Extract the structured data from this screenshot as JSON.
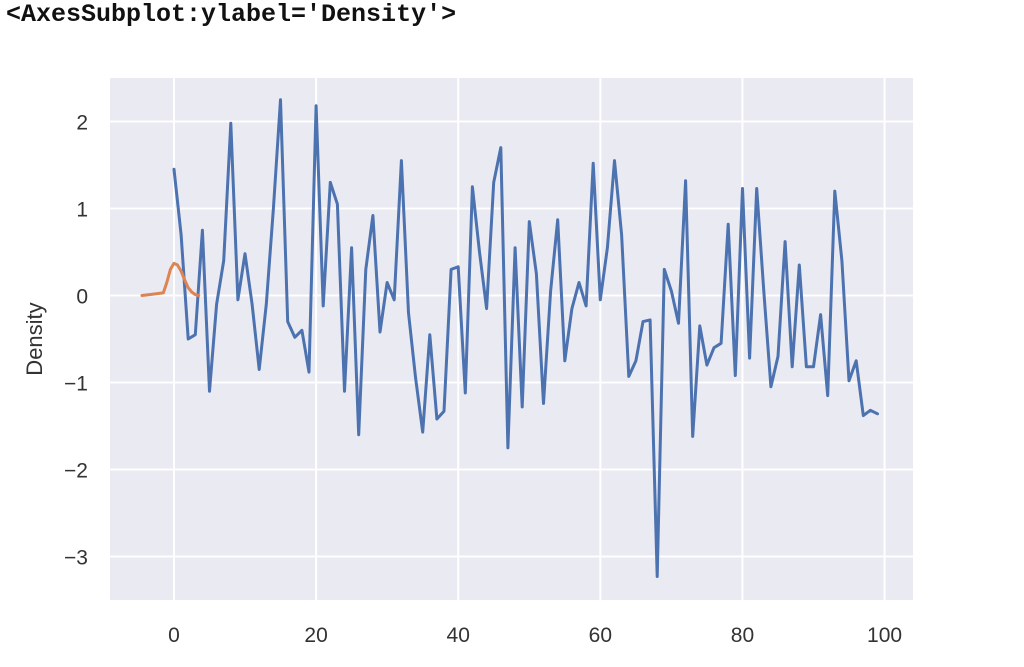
{
  "output_text": "<AxesSubplot:ylabel='Density'>",
  "chart_data": {
    "type": "line",
    "ylabel": "Density",
    "xlabel": "",
    "title": "",
    "xlim": [
      -9,
      104
    ],
    "ylim": [
      -3.5,
      2.5
    ],
    "xticks": [
      0,
      20,
      40,
      60,
      80,
      100
    ],
    "yticks": [
      2,
      1,
      0,
      -1,
      -2,
      -3
    ],
    "xtick_labels": [
      "0",
      "20",
      "40",
      "60",
      "80",
      "100"
    ],
    "ytick_labels": [
      "2",
      "1",
      "0",
      "−1",
      "−2",
      "−3"
    ],
    "grid": true,
    "background": "#eaeaf2",
    "series": [
      {
        "color": "#4c72b0",
        "x": [
          0,
          1,
          2,
          3,
          4,
          5,
          6,
          7,
          8,
          9,
          10,
          11,
          12,
          13,
          14,
          15,
          16,
          17,
          18,
          19,
          20,
          21,
          22,
          23,
          24,
          25,
          26,
          27,
          28,
          29,
          30,
          31,
          32,
          33,
          34,
          35,
          36,
          37,
          38,
          39,
          40,
          41,
          42,
          43,
          44,
          45,
          46,
          47,
          48,
          49,
          50,
          51,
          52,
          53,
          54,
          55,
          56,
          57,
          58,
          59,
          60,
          61,
          62,
          63,
          64,
          65,
          66,
          67,
          68,
          69,
          70,
          71,
          72,
          73,
          74,
          75,
          76,
          77,
          78,
          79,
          80,
          81,
          82,
          83,
          84,
          85,
          86,
          87,
          88,
          89,
          90,
          91,
          92,
          93,
          94,
          95,
          96,
          97,
          98,
          99
        ],
        "values": [
          1.45,
          0.7,
          -0.5,
          -0.45,
          0.75,
          -1.1,
          -0.1,
          0.4,
          1.98,
          -0.05,
          0.48,
          -0.1,
          -0.85,
          -0.1,
          1.0,
          2.25,
          -0.3,
          -0.48,
          -0.4,
          -0.88,
          2.18,
          -0.12,
          1.3,
          1.05,
          -1.1,
          0.55,
          -1.6,
          0.3,
          0.92,
          -0.42,
          0.15,
          -0.05,
          1.55,
          -0.2,
          -0.95,
          -1.57,
          -0.45,
          -1.42,
          -1.33,
          0.3,
          0.33,
          -1.12,
          1.25,
          0.5,
          -0.15,
          1.3,
          1.7,
          -1.75,
          0.55,
          -1.28,
          0.85,
          0.25,
          -1.24,
          0.05,
          0.87,
          -0.75,
          -0.15,
          0.15,
          -0.12,
          1.52,
          -0.05,
          0.55,
          1.55,
          0.7,
          -0.93,
          -0.75,
          -0.3,
          -0.28,
          -3.23,
          0.3,
          0.05,
          -0.32,
          1.32,
          -1.62,
          -0.35,
          -0.8,
          -0.6,
          -0.55,
          0.82,
          -0.92,
          1.23,
          -0.72,
          1.23,
          0.05,
          -1.05,
          -0.7,
          0.62,
          -0.82,
          0.35,
          -0.82,
          -0.82,
          -0.22,
          -1.15,
          1.2,
          0.4,
          -0.98,
          -0.75,
          -1.38,
          -1.32,
          -1.36
        ]
      },
      {
        "color": "#dd8452",
        "x": [
          -4.5,
          -3.5,
          -2.5,
          -1.5,
          -1.0,
          -0.5,
          0.0,
          0.5,
          1.0,
          1.5,
          2.0,
          2.5,
          3.0,
          3.5
        ],
        "values": [
          0.0,
          0.01,
          0.02,
          0.03,
          0.15,
          0.3,
          0.37,
          0.35,
          0.28,
          0.18,
          0.09,
          0.04,
          0.01,
          0.0
        ]
      }
    ]
  }
}
